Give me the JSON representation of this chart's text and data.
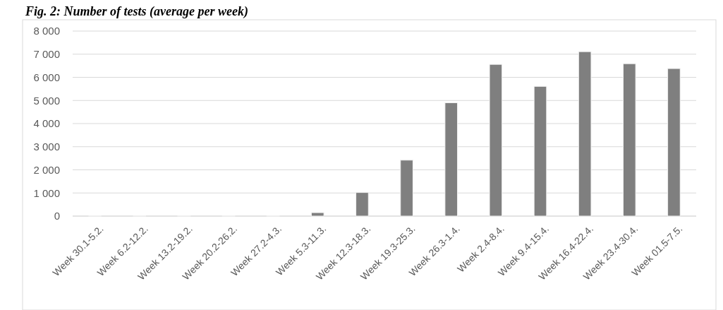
{
  "chart_data": {
    "type": "bar",
    "title": "Fig. 2: Number of tests (average per week)",
    "categories": [
      "Week 30.1-5.2.",
      "Week 6.2-12.2.",
      "Week 13.2-19.2.",
      "Week 20.2-26.2.",
      "Week 27.2-4.3.",
      "Week 5.3-11.3.",
      "Week 12.3-18.3.",
      "Week 19.3-25.3.",
      "Week 26.3-1.4.",
      "Week 2.4-8.4.",
      "Week 9.4-15.4.",
      "Week 16.4-22.4.",
      "Week 23.4-30.4.",
      "Week 01.5-7.5."
    ],
    "values": [
      20,
      20,
      20,
      20,
      20,
      150,
      1020,
      2420,
      4900,
      6560,
      5610,
      7110,
      6590,
      6380
    ],
    "color": "#7f7f7f",
    "ylim": [
      0,
      8000
    ],
    "yticks": [
      {
        "value": 0,
        "label": "0"
      },
      {
        "value": 1000,
        "label": "1 000"
      },
      {
        "value": 2000,
        "label": "2 000"
      },
      {
        "value": 3000,
        "label": "3 000"
      },
      {
        "value": 4000,
        "label": "4 000"
      },
      {
        "value": 5000,
        "label": "5 000"
      },
      {
        "value": 6000,
        "label": "6 000"
      },
      {
        "value": 7000,
        "label": "7 000"
      },
      {
        "value": 8000,
        "label": "8 000"
      }
    ],
    "grid": "y"
  }
}
